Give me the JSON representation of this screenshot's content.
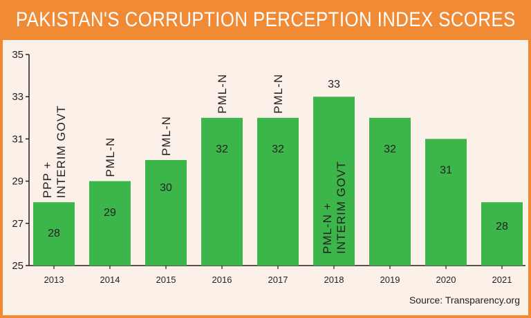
{
  "title": "PAKISTAN'S CORRUPTION PERCEPTION INDEX SCORES",
  "source": "Source: Transparency.org",
  "colors": {
    "header": "#f08a35",
    "background": "#fbf1e8",
    "bar": "#3cb54a",
    "text": "#231f20"
  },
  "chart_data": {
    "type": "bar",
    "title": "PAKISTAN'S CORRUPTION PERCEPTION INDEX SCORES",
    "xlabel": "",
    "ylabel": "",
    "categories": [
      "2013",
      "2014",
      "2015",
      "2016",
      "2017",
      "2018",
      "2019",
      "2020",
      "2021"
    ],
    "values": [
      28,
      29,
      30,
      32,
      32,
      33,
      32,
      31,
      28
    ],
    "value_labels": [
      "28",
      "29",
      "30",
      "32",
      "32",
      "33",
      "32",
      "31",
      "28"
    ],
    "annotations": [
      [
        "PPP +",
        "INTERIM GOVT"
      ],
      [
        "PML-N"
      ],
      [
        "PML-N"
      ],
      [
        "PML-N"
      ],
      [
        "PML-N"
      ],
      [
        "PML-N +",
        "INTERIM GOVT"
      ],
      [],
      [],
      []
    ],
    "ylim": [
      25,
      35
    ],
    "yticks": [
      25,
      27,
      29,
      31,
      33,
      35
    ],
    "grid": false,
    "legend": "none"
  }
}
